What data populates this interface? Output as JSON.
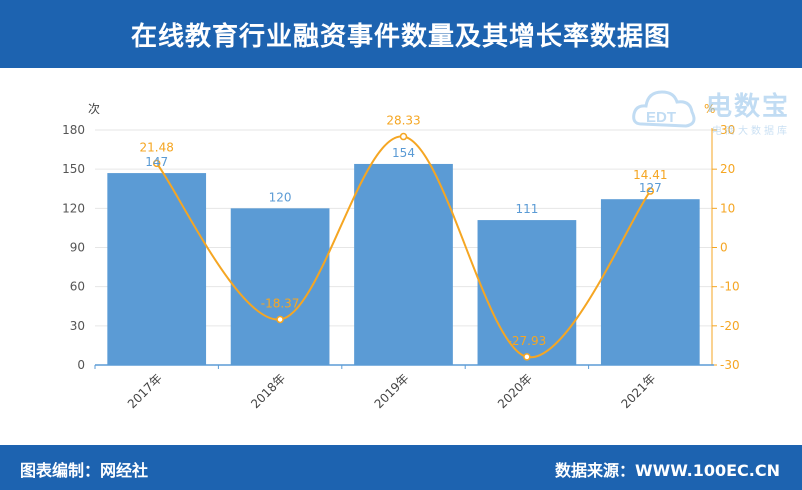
{
  "header": {
    "title": "在线教育行业融资事件数量及其增长率数据图"
  },
  "footer": {
    "source_left": "图表编制：网经社",
    "source_right": "数据来源：WWW.100EC.CN"
  },
  "watermark": {
    "text": "电数宝",
    "subtext": "电商大数据库",
    "badge": "EDT"
  },
  "colors": {
    "header_bg": "#1d63b0",
    "bar": "#5b9bd5",
    "line": "#f5a623",
    "bar_label": "#5b9bd5",
    "line_label": "#f5a623"
  },
  "chart_data": {
    "type": "bar",
    "categories": [
      "2017年",
      "2018年",
      "2019年",
      "2020年",
      "2021年"
    ],
    "series": [
      {
        "name": "",
        "type": "bar",
        "axis": "left",
        "values": [
          147,
          120,
          154,
          111,
          127
        ]
      },
      {
        "name": "",
        "type": "line",
        "axis": "right",
        "values": [
          21.48,
          -18.37,
          28.33,
          -27.93,
          14.41
        ]
      }
    ],
    "ylabel": "次",
    "ylim": [
      0,
      180
    ],
    "yticks": [
      0,
      30,
      60,
      90,
      120,
      150,
      180
    ],
    "y2label": "%",
    "y2lim": [
      -30,
      30
    ],
    "y2ticks": [
      -30,
      -20,
      -10,
      0,
      10,
      20,
      30
    ],
    "grid": true
  }
}
